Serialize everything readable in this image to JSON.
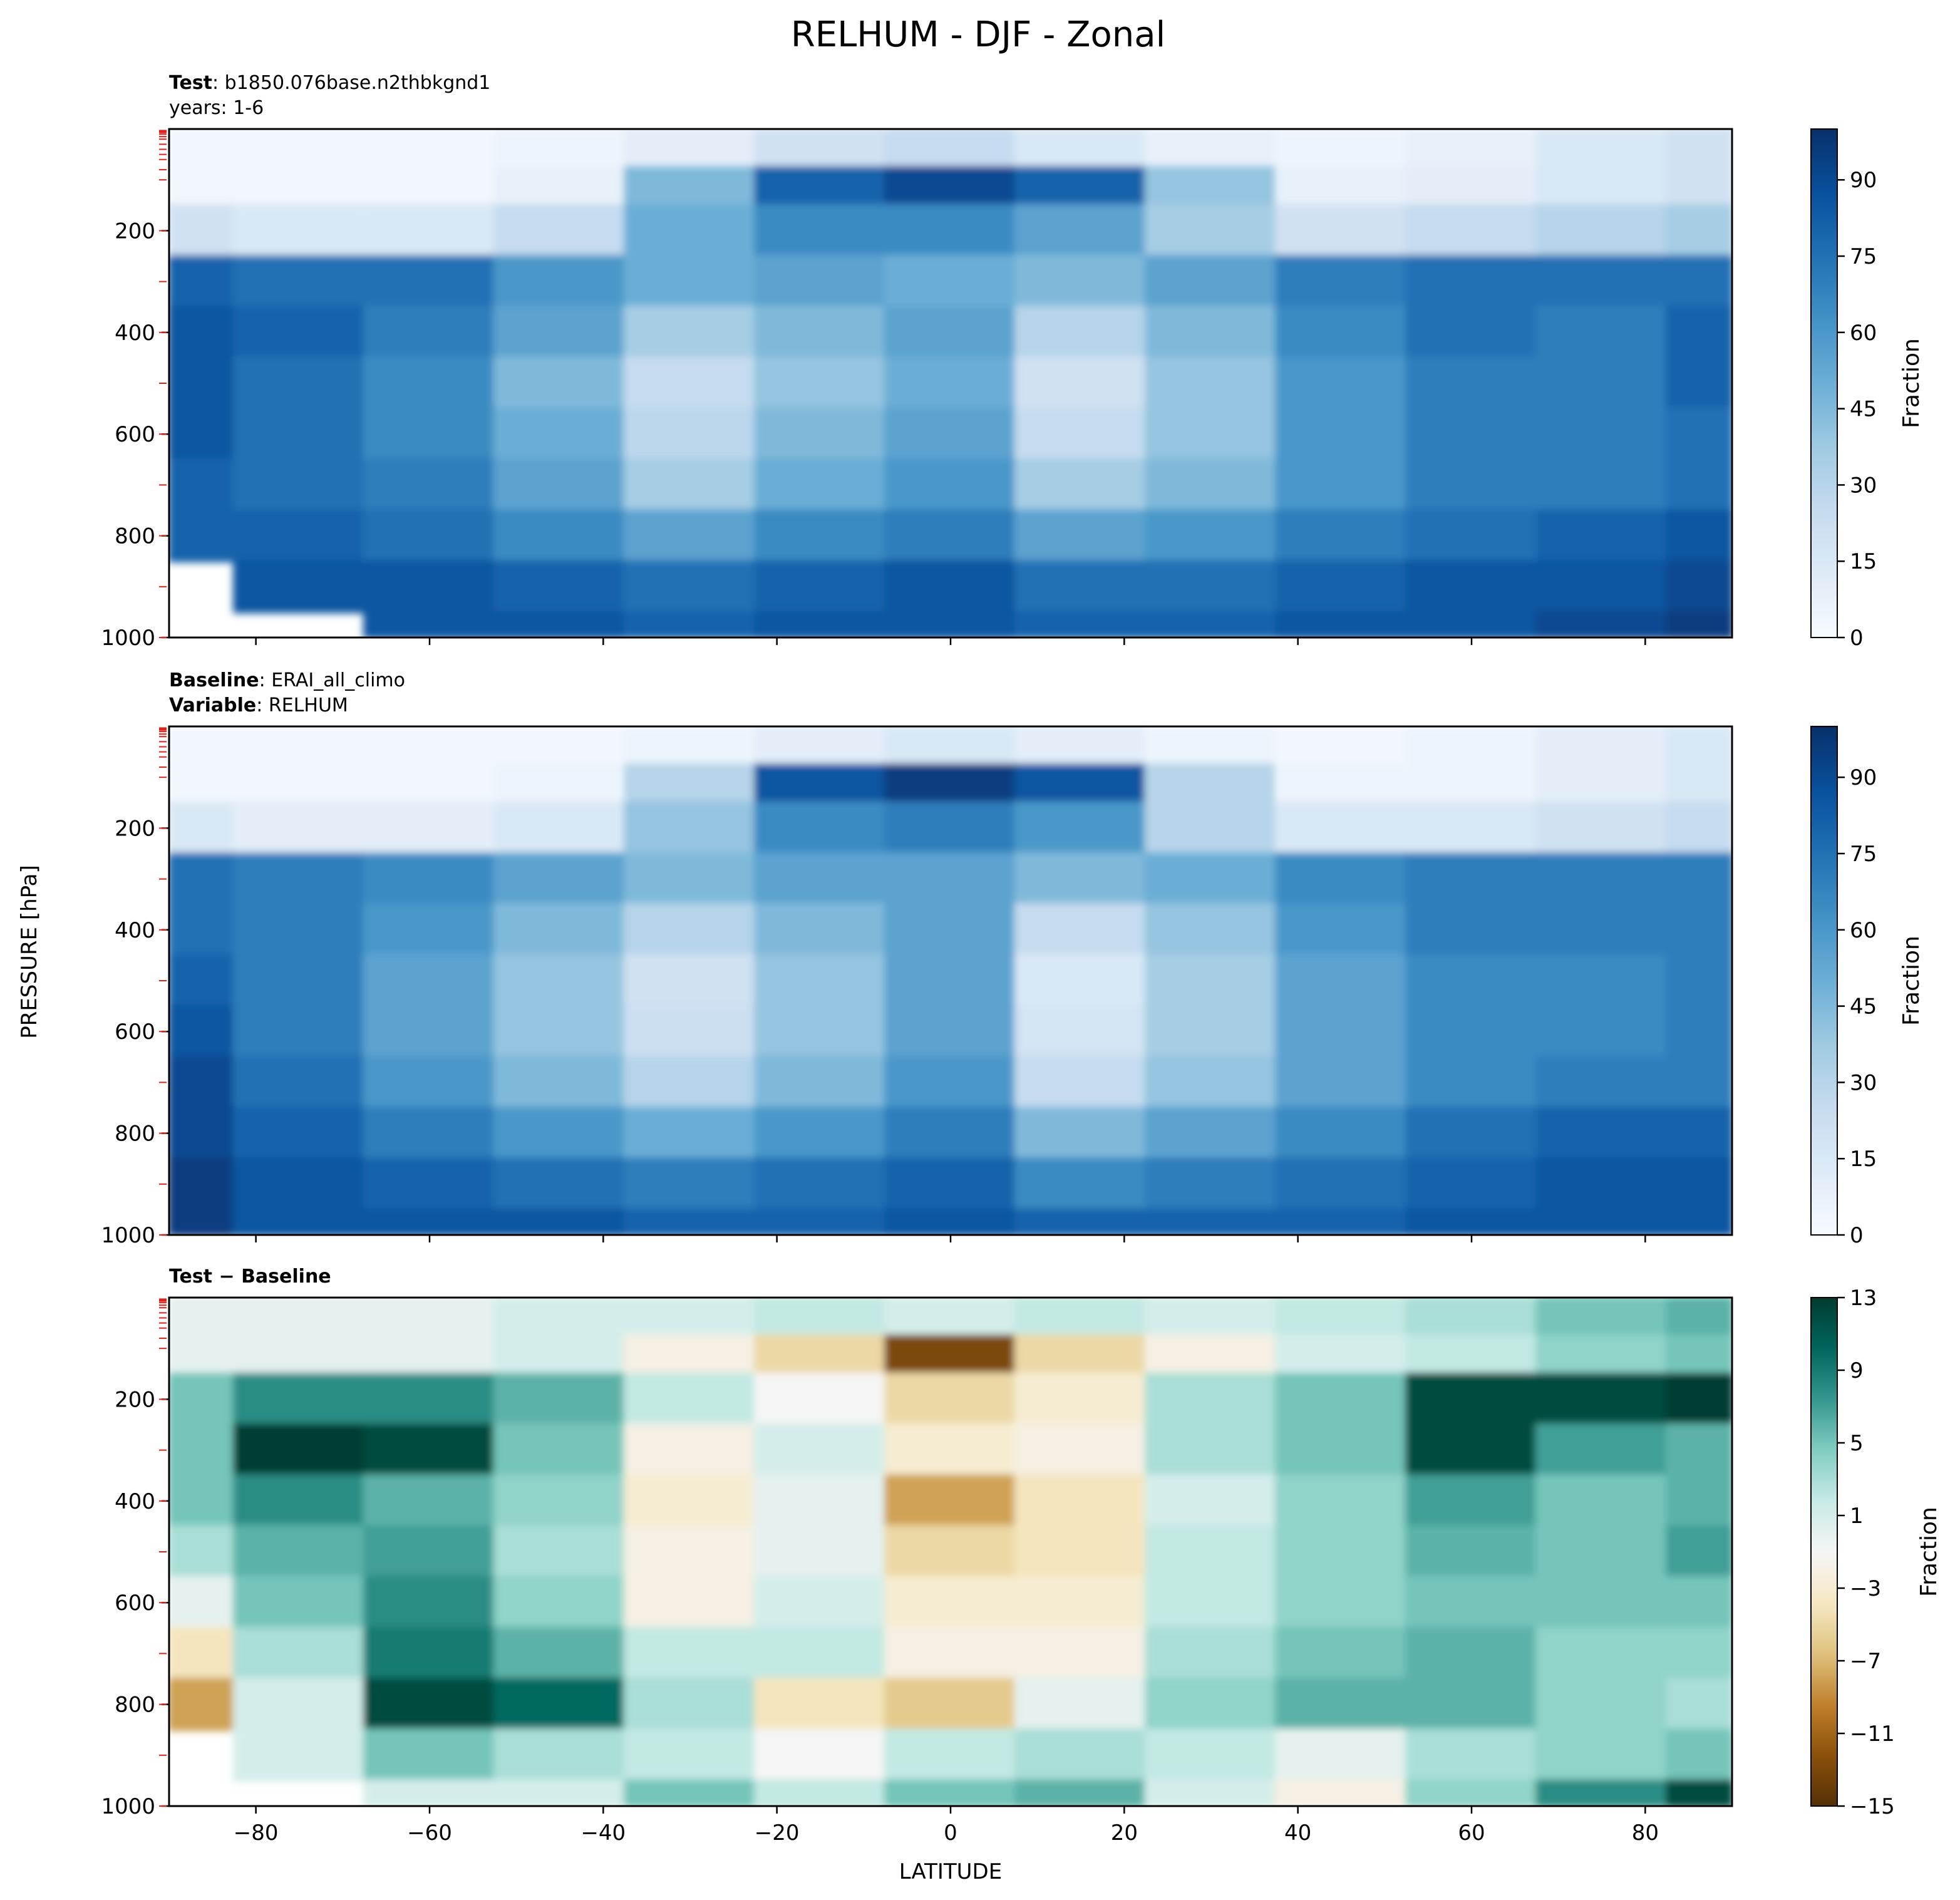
{
  "figure": {
    "title": "RELHUM - DJF - Zonal",
    "ylabel": "PRESSURE [hPa]",
    "xlabel": "LATITUDE"
  },
  "panels": [
    {
      "header_line1_bold": "Test",
      "header_line1_rest": ": b1850.076base.n2thbkgnd1",
      "header_line2_bold": "",
      "header_line2_rest": "years: 1-6",
      "colorbar_label": "Fraction",
      "colorbar_ticks": [
        "0",
        "15",
        "30",
        "45",
        "60",
        "75",
        "90"
      ],
      "colormap": "Blues"
    },
    {
      "header_line1_bold": "Baseline",
      "header_line1_rest": ": ERAI_all_climo",
      "header_line2_bold": "Variable",
      "header_line2_rest": ": RELHUM",
      "colorbar_label": "Fraction",
      "colorbar_ticks": [
        "0",
        "15",
        "30",
        "45",
        "60",
        "75",
        "90"
      ],
      "colormap": "Blues"
    },
    {
      "header_line1_bold": "Test",
      "header_line1_rest": " − ",
      "header_line1_bold2": "Baseline",
      "header_line2_bold": "",
      "header_line2_rest": "",
      "colorbar_label": "Fraction",
      "colorbar_ticks": [
        "13",
        "9",
        "5",
        "1",
        "−3",
        "−7",
        "−11",
        "−15"
      ],
      "colormap": "BrBG"
    }
  ],
  "chart_data": [
    {
      "type": "heatmap",
      "panel": "Test",
      "xlim": [
        -90,
        90
      ],
      "ylim": [
        1000,
        0
      ],
      "x_ticks": [
        -80,
        -60,
        -40,
        -20,
        0,
        20,
        40,
        60,
        80
      ],
      "y_ticks": [
        200,
        400,
        600,
        800,
        1000
      ],
      "clim": [
        0,
        100
      ],
      "colorbar_ticks": [
        0,
        15,
        30,
        45,
        60,
        75,
        90
      ],
      "lat": [
        -90,
        -75,
        -60,
        -45,
        -30,
        -15,
        0,
        15,
        30,
        45,
        60,
        75,
        90
      ],
      "pressure": [
        50,
        100,
        200,
        300,
        400,
        500,
        600,
        700,
        800,
        900,
        1000
      ],
      "values": [
        [
          3,
          3,
          3,
          5,
          10,
          20,
          25,
          15,
          8,
          5,
          8,
          15,
          20
        ],
        [
          3,
          3,
          3,
          8,
          45,
          80,
          90,
          80,
          40,
          8,
          10,
          15,
          20
        ],
        [
          20,
          15,
          15,
          25,
          50,
          65,
          65,
          55,
          35,
          20,
          25,
          30,
          35
        ],
        [
          80,
          75,
          75,
          60,
          50,
          55,
          50,
          45,
          55,
          70,
          75,
          75,
          75
        ],
        [
          85,
          80,
          70,
          55,
          35,
          45,
          55,
          30,
          45,
          65,
          75,
          70,
          80
        ],
        [
          85,
          75,
          65,
          45,
          25,
          40,
          50,
          20,
          40,
          60,
          70,
          70,
          80
        ],
        [
          85,
          75,
          65,
          50,
          28,
          45,
          55,
          25,
          40,
          60,
          70,
          70,
          75
        ],
        [
          80,
          75,
          70,
          55,
          35,
          50,
          60,
          35,
          45,
          60,
          70,
          70,
          75
        ],
        [
          80,
          80,
          75,
          65,
          55,
          65,
          70,
          55,
          60,
          70,
          75,
          80,
          85
        ],
        [
          null,
          85,
          85,
          80,
          75,
          80,
          85,
          75,
          75,
          80,
          85,
          85,
          90
        ],
        [
          null,
          null,
          85,
          85,
          80,
          85,
          85,
          80,
          80,
          85,
          85,
          90,
          95
        ]
      ]
    },
    {
      "type": "heatmap",
      "panel": "Baseline",
      "xlim": [
        -90,
        90
      ],
      "ylim": [
        1000,
        0
      ],
      "x_ticks": [
        -80,
        -60,
        -40,
        -20,
        0,
        20,
        40,
        60,
        80
      ],
      "y_ticks": [
        200,
        400,
        600,
        800,
        1000
      ],
      "clim": [
        0,
        100
      ],
      "colorbar_ticks": [
        0,
        15,
        30,
        45,
        60,
        75,
        90
      ],
      "lat": [
        -90,
        -75,
        -60,
        -45,
        -30,
        -15,
        0,
        15,
        30,
        45,
        60,
        75,
        90
      ],
      "pressure": [
        50,
        100,
        200,
        300,
        400,
        500,
        600,
        700,
        800,
        900,
        1000
      ],
      "values": [
        [
          3,
          3,
          3,
          3,
          5,
          10,
          15,
          10,
          5,
          3,
          5,
          10,
          15
        ],
        [
          3,
          3,
          3,
          5,
          30,
          85,
          95,
          85,
          30,
          5,
          5,
          10,
          15
        ],
        [
          15,
          10,
          10,
          15,
          40,
          65,
          70,
          60,
          30,
          15,
          15,
          20,
          25
        ],
        [
          75,
          70,
          65,
          55,
          45,
          55,
          55,
          45,
          50,
          65,
          70,
          70,
          70
        ],
        [
          75,
          70,
          60,
          45,
          30,
          45,
          55,
          25,
          40,
          60,
          70,
          70,
          70
        ],
        [
          80,
          70,
          55,
          40,
          20,
          40,
          55,
          15,
          35,
          55,
          65,
          65,
          70
        ],
        [
          85,
          70,
          55,
          40,
          22,
          40,
          55,
          18,
          35,
          55,
          65,
          65,
          70
        ],
        [
          90,
          75,
          60,
          45,
          30,
          45,
          60,
          25,
          40,
          55,
          65,
          70,
          70
        ],
        [
          90,
          80,
          70,
          60,
          50,
          60,
          70,
          45,
          55,
          65,
          75,
          80,
          80
        ],
        [
          95,
          85,
          80,
          75,
          70,
          75,
          80,
          65,
          70,
          75,
          80,
          85,
          85
        ],
        [
          95,
          85,
          85,
          85,
          80,
          80,
          85,
          80,
          80,
          80,
          85,
          85,
          85
        ]
      ]
    },
    {
      "type": "heatmap",
      "panel": "Test − Baseline",
      "xlim": [
        -90,
        90
      ],
      "ylim": [
        1000,
        0
      ],
      "x_ticks": [
        -80,
        -60,
        -40,
        -20,
        0,
        20,
        40,
        60,
        80
      ],
      "y_ticks": [
        200,
        400,
        600,
        800,
        1000
      ],
      "clim": [
        -15,
        13
      ],
      "colorbar_ticks": [
        13,
        9,
        5,
        1,
        -3,
        -7,
        -11,
        -15
      ],
      "lat": [
        -90,
        -75,
        -60,
        -45,
        -30,
        -15,
        0,
        15,
        30,
        45,
        60,
        75,
        90
      ],
      "pressure": [
        50,
        100,
        200,
        300,
        400,
        500,
        600,
        700,
        800,
        900,
        1000
      ],
      "values": [
        [
          0,
          0,
          0,
          1,
          1,
          2,
          1,
          2,
          1,
          2,
          3,
          5,
          6
        ],
        [
          0,
          0,
          0,
          1,
          -2,
          -5,
          -13,
          -5,
          -2,
          1,
          2,
          4,
          5
        ],
        [
          5,
          8,
          8,
          6,
          2,
          -1,
          -5,
          -3,
          3,
          5,
          12,
          12,
          14
        ],
        [
          5,
          14,
          12,
          5,
          -2,
          1,
          -3,
          -2,
          3,
          5,
          12,
          7,
          6
        ],
        [
          5,
          8,
          6,
          4,
          -3,
          0,
          -8,
          -4,
          1,
          4,
          7,
          5,
          6
        ],
        [
          3,
          6,
          7,
          3,
          -2,
          0,
          -5,
          -4,
          2,
          4,
          6,
          5,
          7
        ],
        [
          0,
          5,
          8,
          4,
          -2,
          1,
          -3,
          -3,
          2,
          4,
          5,
          5,
          5
        ],
        [
          -4,
          3,
          9,
          6,
          2,
          2,
          -2,
          -2,
          3,
          5,
          6,
          4,
          4
        ],
        [
          -8,
          1,
          12,
          10,
          3,
          -4,
          -6,
          0,
          4,
          6,
          6,
          4,
          3
        ],
        [
          null,
          1,
          5,
          3,
          2,
          -1,
          2,
          3,
          2,
          0,
          3,
          4,
          5
        ],
        [
          null,
          null,
          1,
          1,
          5,
          2,
          5,
          6,
          1,
          -2,
          4,
          8,
          12
        ]
      ]
    }
  ]
}
